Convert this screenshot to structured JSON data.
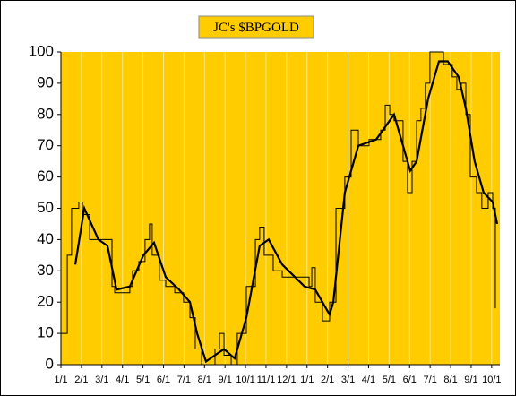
{
  "chart_data": {
    "type": "line",
    "title": "JC's $BPGOLD",
    "xlim": [
      0,
      21.4
    ],
    "xticks": [
      {
        "value": 0,
        "label": "1/1"
      },
      {
        "value": 1,
        "label": "2/1"
      },
      {
        "value": 2,
        "label": "3/1"
      },
      {
        "value": 3,
        "label": "4/1"
      },
      {
        "value": 4,
        "label": "5/1"
      },
      {
        "value": 5,
        "label": "6/1"
      },
      {
        "value": 6,
        "label": "7/1"
      },
      {
        "value": 7,
        "label": "8/1"
      },
      {
        "value": 8,
        "label": "9/1"
      },
      {
        "value": 9,
        "label": "10/1"
      },
      {
        "value": 10,
        "label": "11/1"
      },
      {
        "value": 11,
        "label": "12/1"
      },
      {
        "value": 12,
        "label": "1/1"
      },
      {
        "value": 13,
        "label": "2/1"
      },
      {
        "value": 14,
        "label": "3/1"
      },
      {
        "value": 15,
        "label": "4/1"
      },
      {
        "value": 16,
        "label": "5/1"
      },
      {
        "value": 17,
        "label": "6/1"
      },
      {
        "value": 18,
        "label": "7/1"
      },
      {
        "value": 19,
        "label": "8/1"
      },
      {
        "value": 20,
        "label": "9/1"
      },
      {
        "value": 21,
        "label": "10/1"
      }
    ],
    "ylim": [
      0,
      100
    ],
    "yticks": [
      0,
      10,
      20,
      30,
      40,
      50,
      60,
      70,
      80,
      90,
      100
    ],
    "grid": true,
    "series": [
      {
        "color": "#000000",
        "width": 1,
        "step": true,
        "x": [
          0,
          0.31,
          0.52,
          0.87,
          1.05,
          1.4,
          2.27,
          2.49,
          2.62,
          3.36,
          3.49,
          3.8,
          4.1,
          4.32,
          4.45,
          4.8,
          5.11,
          5.55,
          5.98,
          6.29,
          6.55,
          6.86,
          7.29,
          7.51,
          7.73,
          7.95,
          8.3,
          8.6,
          9.04,
          9.48,
          9.69,
          9.91,
          10.35,
          10.79,
          11.66,
          12.1,
          12.23,
          12.4,
          12.75,
          13.1,
          13.41,
          13.84,
          14.15,
          14.5,
          15.02,
          15.59,
          15.81,
          16.03,
          16.24,
          16.68,
          16.9,
          17.12,
          17.34,
          17.55,
          17.77,
          17.99,
          18.43,
          18.65,
          19.08,
          19.3,
          19.52,
          19.74,
          19.96,
          20.26,
          20.52,
          20.83,
          21.05,
          21.18
        ],
        "values": [
          10,
          35,
          50,
          52,
          48,
          40,
          40,
          25,
          23,
          25,
          30,
          33,
          40,
          45,
          35,
          27,
          25,
          23,
          20,
          15,
          5,
          0,
          0,
          5,
          10,
          3,
          0,
          10,
          25,
          40,
          44,
          35,
          30,
          28,
          28,
          25,
          31,
          20,
          14,
          20,
          50,
          60,
          75,
          70,
          72,
          75,
          83,
          80,
          78,
          65,
          55,
          65,
          78,
          82,
          90,
          100,
          100,
          96,
          92,
          88,
          90,
          80,
          60,
          55,
          50,
          55,
          50,
          18
        ]
      },
      {
        "color": "#000000",
        "width": 2.2,
        "step": false,
        "x": [
          0.7,
          1.14,
          1.83,
          2.27,
          2.71,
          3.36,
          4.02,
          4.54,
          5.11,
          5.76,
          6.29,
          6.64,
          7.07,
          7.51,
          7.95,
          8.47,
          9.04,
          9.69,
          10.13,
          10.79,
          11.88,
          12.4,
          13.1,
          13.28,
          13.84,
          14.5,
          15.37,
          16.24,
          16.68,
          17.03,
          17.34,
          17.9,
          18.43,
          18.86,
          19.39,
          19.74,
          20.17,
          20.61,
          21.05,
          21.27
        ],
        "values": [
          32,
          50,
          40,
          38,
          24,
          25,
          35,
          39,
          28,
          24,
          20,
          10,
          1,
          3,
          5,
          2,
          15,
          38,
          40,
          32,
          25,
          24,
          16,
          20,
          55,
          70,
          72,
          80,
          70,
          62,
          65,
          85,
          97,
          97,
          92,
          82,
          65,
          55,
          52,
          45
        ]
      }
    ]
  }
}
